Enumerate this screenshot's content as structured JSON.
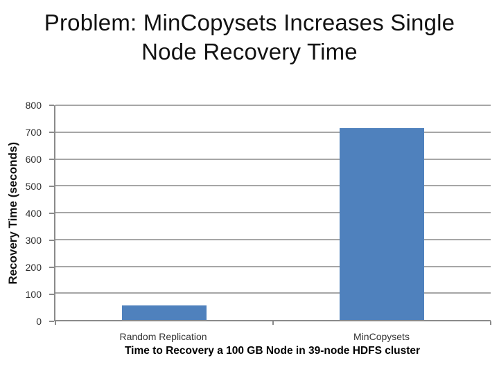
{
  "slide": {
    "title_line1": "Problem: MinCopysets Increases Single",
    "title_line2": "Node Recovery Time"
  },
  "chart_data": {
    "type": "bar",
    "title": "Problem: MinCopysets Increases Single Node Recovery Time",
    "categories": [
      "Random Replication",
      "MinCopysets"
    ],
    "values": [
      55,
      715
    ],
    "ylabel": "Recovery Time (seconds)",
    "xlabel": "Time to Recovery a 100 GB Node in 39-node HDFS cluster",
    "ylim": [
      0,
      800
    ],
    "yticks": [
      0,
      100,
      200,
      300,
      400,
      500,
      600,
      700,
      800
    ],
    "grid": true,
    "legend_position": "none",
    "bar_color": "#4F81BD",
    "gridline_color": "#A6A6A6",
    "axis_color": "#8A8A8A"
  }
}
